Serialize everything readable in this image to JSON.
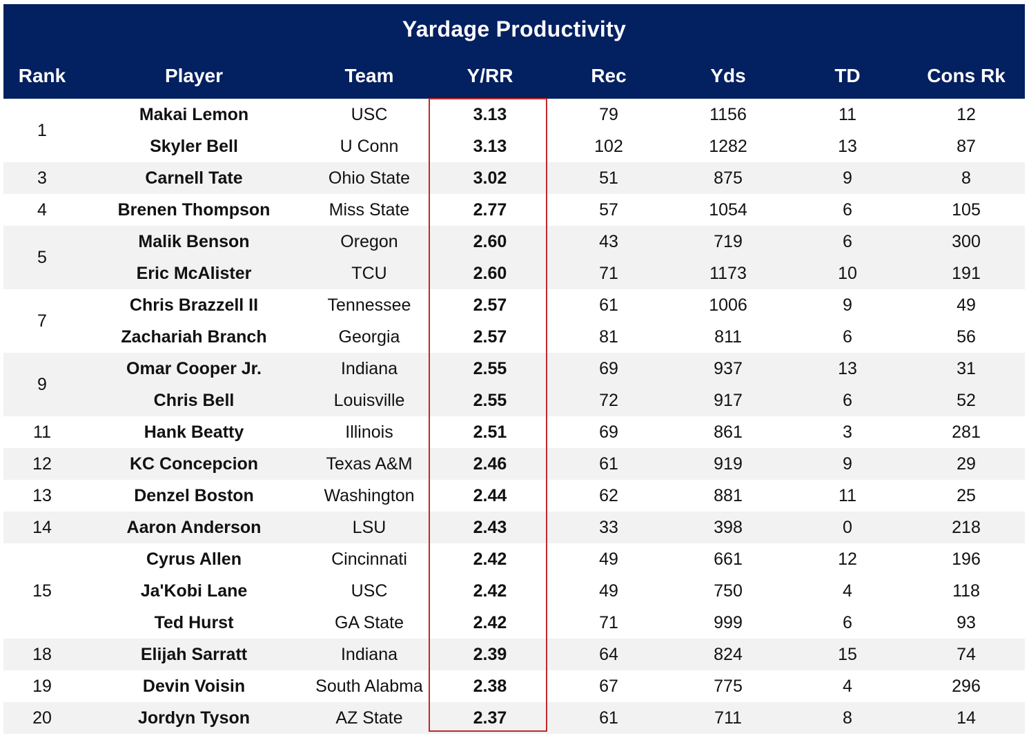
{
  "chart_data": {
    "type": "table",
    "title": "Yardage Productivity",
    "columns": [
      "Rank",
      "Player",
      "Team",
      "Y/RR",
      "Rec",
      "Yds",
      "TD",
      "Cons Rk"
    ],
    "highlight_column": "Y/RR",
    "highlight_color": "#c0272d",
    "header_color": "#032060",
    "groups": [
      {
        "rank": "1",
        "rows": [
          {
            "player": "Makai Lemon",
            "team": "USC",
            "yrr": "3.13",
            "rec": "79",
            "yds": "1156",
            "td": "11",
            "cons": "12"
          },
          {
            "player": "Skyler Bell",
            "team": "U Conn",
            "yrr": "3.13",
            "rec": "102",
            "yds": "1282",
            "td": "13",
            "cons": "87"
          }
        ]
      },
      {
        "rank": "3",
        "rows": [
          {
            "player": "Carnell Tate",
            "team": "Ohio State",
            "yrr": "3.02",
            "rec": "51",
            "yds": "875",
            "td": "9",
            "cons": "8"
          }
        ]
      },
      {
        "rank": "4",
        "rows": [
          {
            "player": "Brenen Thompson",
            "team": "Miss State",
            "yrr": "2.77",
            "rec": "57",
            "yds": "1054",
            "td": "6",
            "cons": "105"
          }
        ]
      },
      {
        "rank": "5",
        "rows": [
          {
            "player": "Malik Benson",
            "team": "Oregon",
            "yrr": "2.60",
            "rec": "43",
            "yds": "719",
            "td": "6",
            "cons": "300"
          },
          {
            "player": "Eric McAlister",
            "team": "TCU",
            "yrr": "2.60",
            "rec": "71",
            "yds": "1173",
            "td": "10",
            "cons": "191"
          }
        ]
      },
      {
        "rank": "7",
        "rows": [
          {
            "player": "Chris Brazzell II",
            "team": "Tennessee",
            "yrr": "2.57",
            "rec": "61",
            "yds": "1006",
            "td": "9",
            "cons": "49"
          },
          {
            "player": "Zachariah Branch",
            "team": "Georgia",
            "yrr": "2.57",
            "rec": "81",
            "yds": "811",
            "td": "6",
            "cons": "56"
          }
        ]
      },
      {
        "rank": "9",
        "rows": [
          {
            "player": "Omar Cooper Jr.",
            "team": "Indiana",
            "yrr": "2.55",
            "rec": "69",
            "yds": "937",
            "td": "13",
            "cons": "31"
          },
          {
            "player": "Chris Bell",
            "team": "Louisville",
            "yrr": "2.55",
            "rec": "72",
            "yds": "917",
            "td": "6",
            "cons": "52"
          }
        ]
      },
      {
        "rank": "11",
        "rows": [
          {
            "player": "Hank Beatty",
            "team": "Illinois",
            "yrr": "2.51",
            "rec": "69",
            "yds": "861",
            "td": "3",
            "cons": "281"
          }
        ]
      },
      {
        "rank": "12",
        "rows": [
          {
            "player": "KC Concepcion",
            "team": "Texas A&M",
            "yrr": "2.46",
            "rec": "61",
            "yds": "919",
            "td": "9",
            "cons": "29"
          }
        ]
      },
      {
        "rank": "13",
        "rows": [
          {
            "player": "Denzel Boston",
            "team": "Washington",
            "yrr": "2.44",
            "rec": "62",
            "yds": "881",
            "td": "11",
            "cons": "25"
          }
        ]
      },
      {
        "rank": "14",
        "rows": [
          {
            "player": "Aaron Anderson",
            "team": "LSU",
            "yrr": "2.43",
            "rec": "33",
            "yds": "398",
            "td": "0",
            "cons": "218"
          }
        ]
      },
      {
        "rank": "15",
        "rows": [
          {
            "player": "Cyrus Allen",
            "team": "Cincinnati",
            "yrr": "2.42",
            "rec": "49",
            "yds": "661",
            "td": "12",
            "cons": "196"
          },
          {
            "player": "Ja'Kobi Lane",
            "team": "USC",
            "yrr": "2.42",
            "rec": "49",
            "yds": "750",
            "td": "4",
            "cons": "118"
          },
          {
            "player": "Ted Hurst",
            "team": "GA State",
            "yrr": "2.42",
            "rec": "71",
            "yds": "999",
            "td": "6",
            "cons": "93"
          }
        ]
      },
      {
        "rank": "18",
        "rows": [
          {
            "player": "Elijah Sarratt",
            "team": "Indiana",
            "yrr": "2.39",
            "rec": "64",
            "yds": "824",
            "td": "15",
            "cons": "74"
          }
        ]
      },
      {
        "rank": "19",
        "rows": [
          {
            "player": "Devin Voisin",
            "team": "South Alabma",
            "yrr": "2.38",
            "rec": "67",
            "yds": "775",
            "td": "4",
            "cons": "296"
          }
        ]
      },
      {
        "rank": "20",
        "rows": [
          {
            "player": "Jordyn Tyson",
            "team": "AZ State",
            "yrr": "2.37",
            "rec": "61",
            "yds": "711",
            "td": "8",
            "cons": "14"
          }
        ]
      }
    ]
  }
}
